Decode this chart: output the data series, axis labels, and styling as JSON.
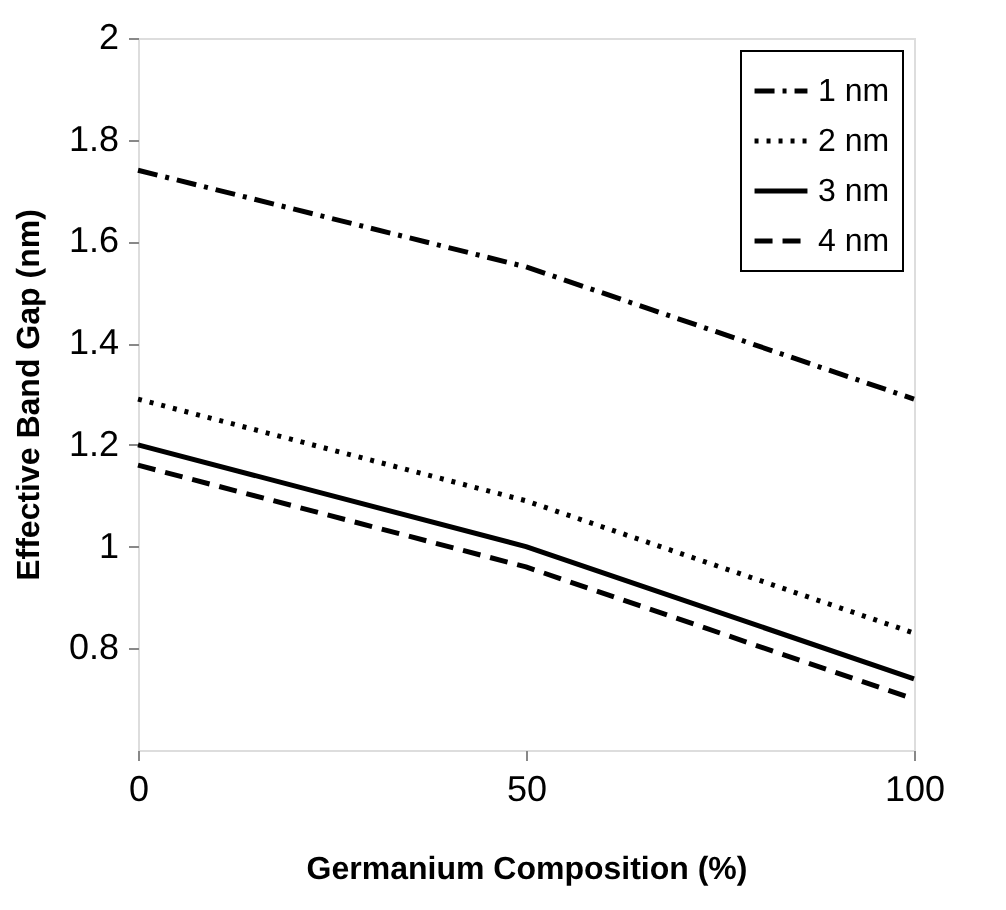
{
  "chart_data": {
    "type": "line",
    "xlabel": "Germanium Composition (%)",
    "ylabel": "Effective Band Gap (nm)",
    "x": [
      0,
      50,
      100
    ],
    "xlim": [
      0,
      100
    ],
    "xticks": [
      0,
      50,
      100
    ],
    "ylim": [
      0.6,
      2
    ],
    "yticks": [
      0.8,
      1,
      1.2,
      1.4,
      1.6,
      1.8,
      2
    ],
    "grid": false,
    "legend": "top right",
    "marker": "none",
    "series": [
      {
        "name": "1 nm",
        "color": "#000000",
        "line_style": "dashdot",
        "values": [
          1.74,
          1.55,
          1.29
        ]
      },
      {
        "name": "2 nm",
        "color": "#000000",
        "line_style": "dotted",
        "values": [
          1.29,
          1.09,
          0.83
        ]
      },
      {
        "name": "3 nm",
        "color": "#000000",
        "line_style": "solid",
        "values": [
          1.2,
          1.0,
          0.74
        ]
      },
      {
        "name": "4 nm",
        "color": "#000000",
        "line_style": "dashed",
        "values": [
          1.16,
          0.96,
          0.7
        ]
      }
    ]
  }
}
